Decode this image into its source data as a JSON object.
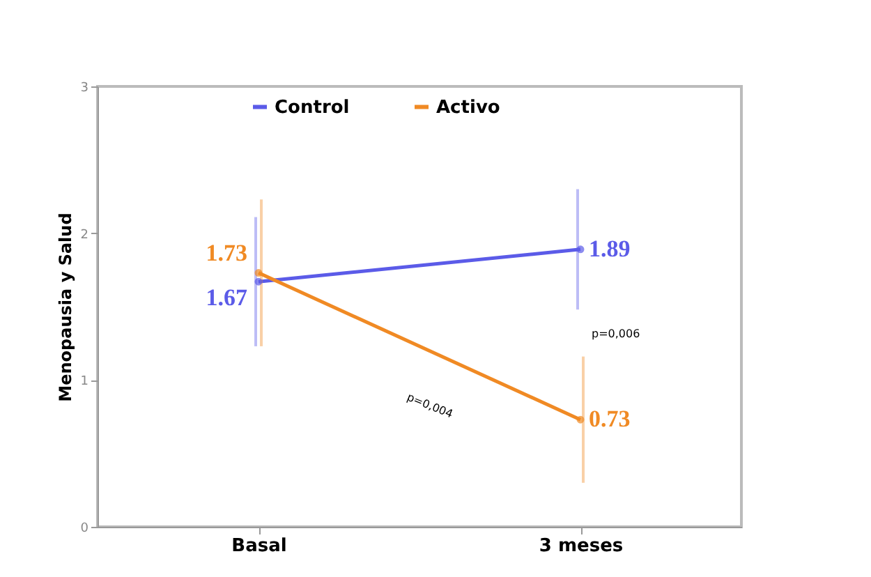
{
  "chart_data": {
    "type": "line",
    "ylabel": "Menopausia y Salud",
    "categories": [
      "Basal",
      "3 meses"
    ],
    "series": [
      {
        "name": "Control",
        "color": "#5b5be8",
        "values": [
          1.67,
          1.89
        ],
        "errors": [
          0.44,
          0.41
        ]
      },
      {
        "name": "Activo",
        "color": "#f08a24",
        "values": [
          1.73,
          0.73
        ],
        "errors": [
          0.5,
          0.43
        ]
      }
    ],
    "ylim": [
      0,
      3
    ],
    "yticks": [
      0,
      1,
      2,
      3
    ],
    "data_labels": true,
    "legend": "top",
    "marker": "circle",
    "line_style": "solid",
    "grid": false,
    "annotations": [
      "p=0,004",
      "p=0,006"
    ]
  }
}
